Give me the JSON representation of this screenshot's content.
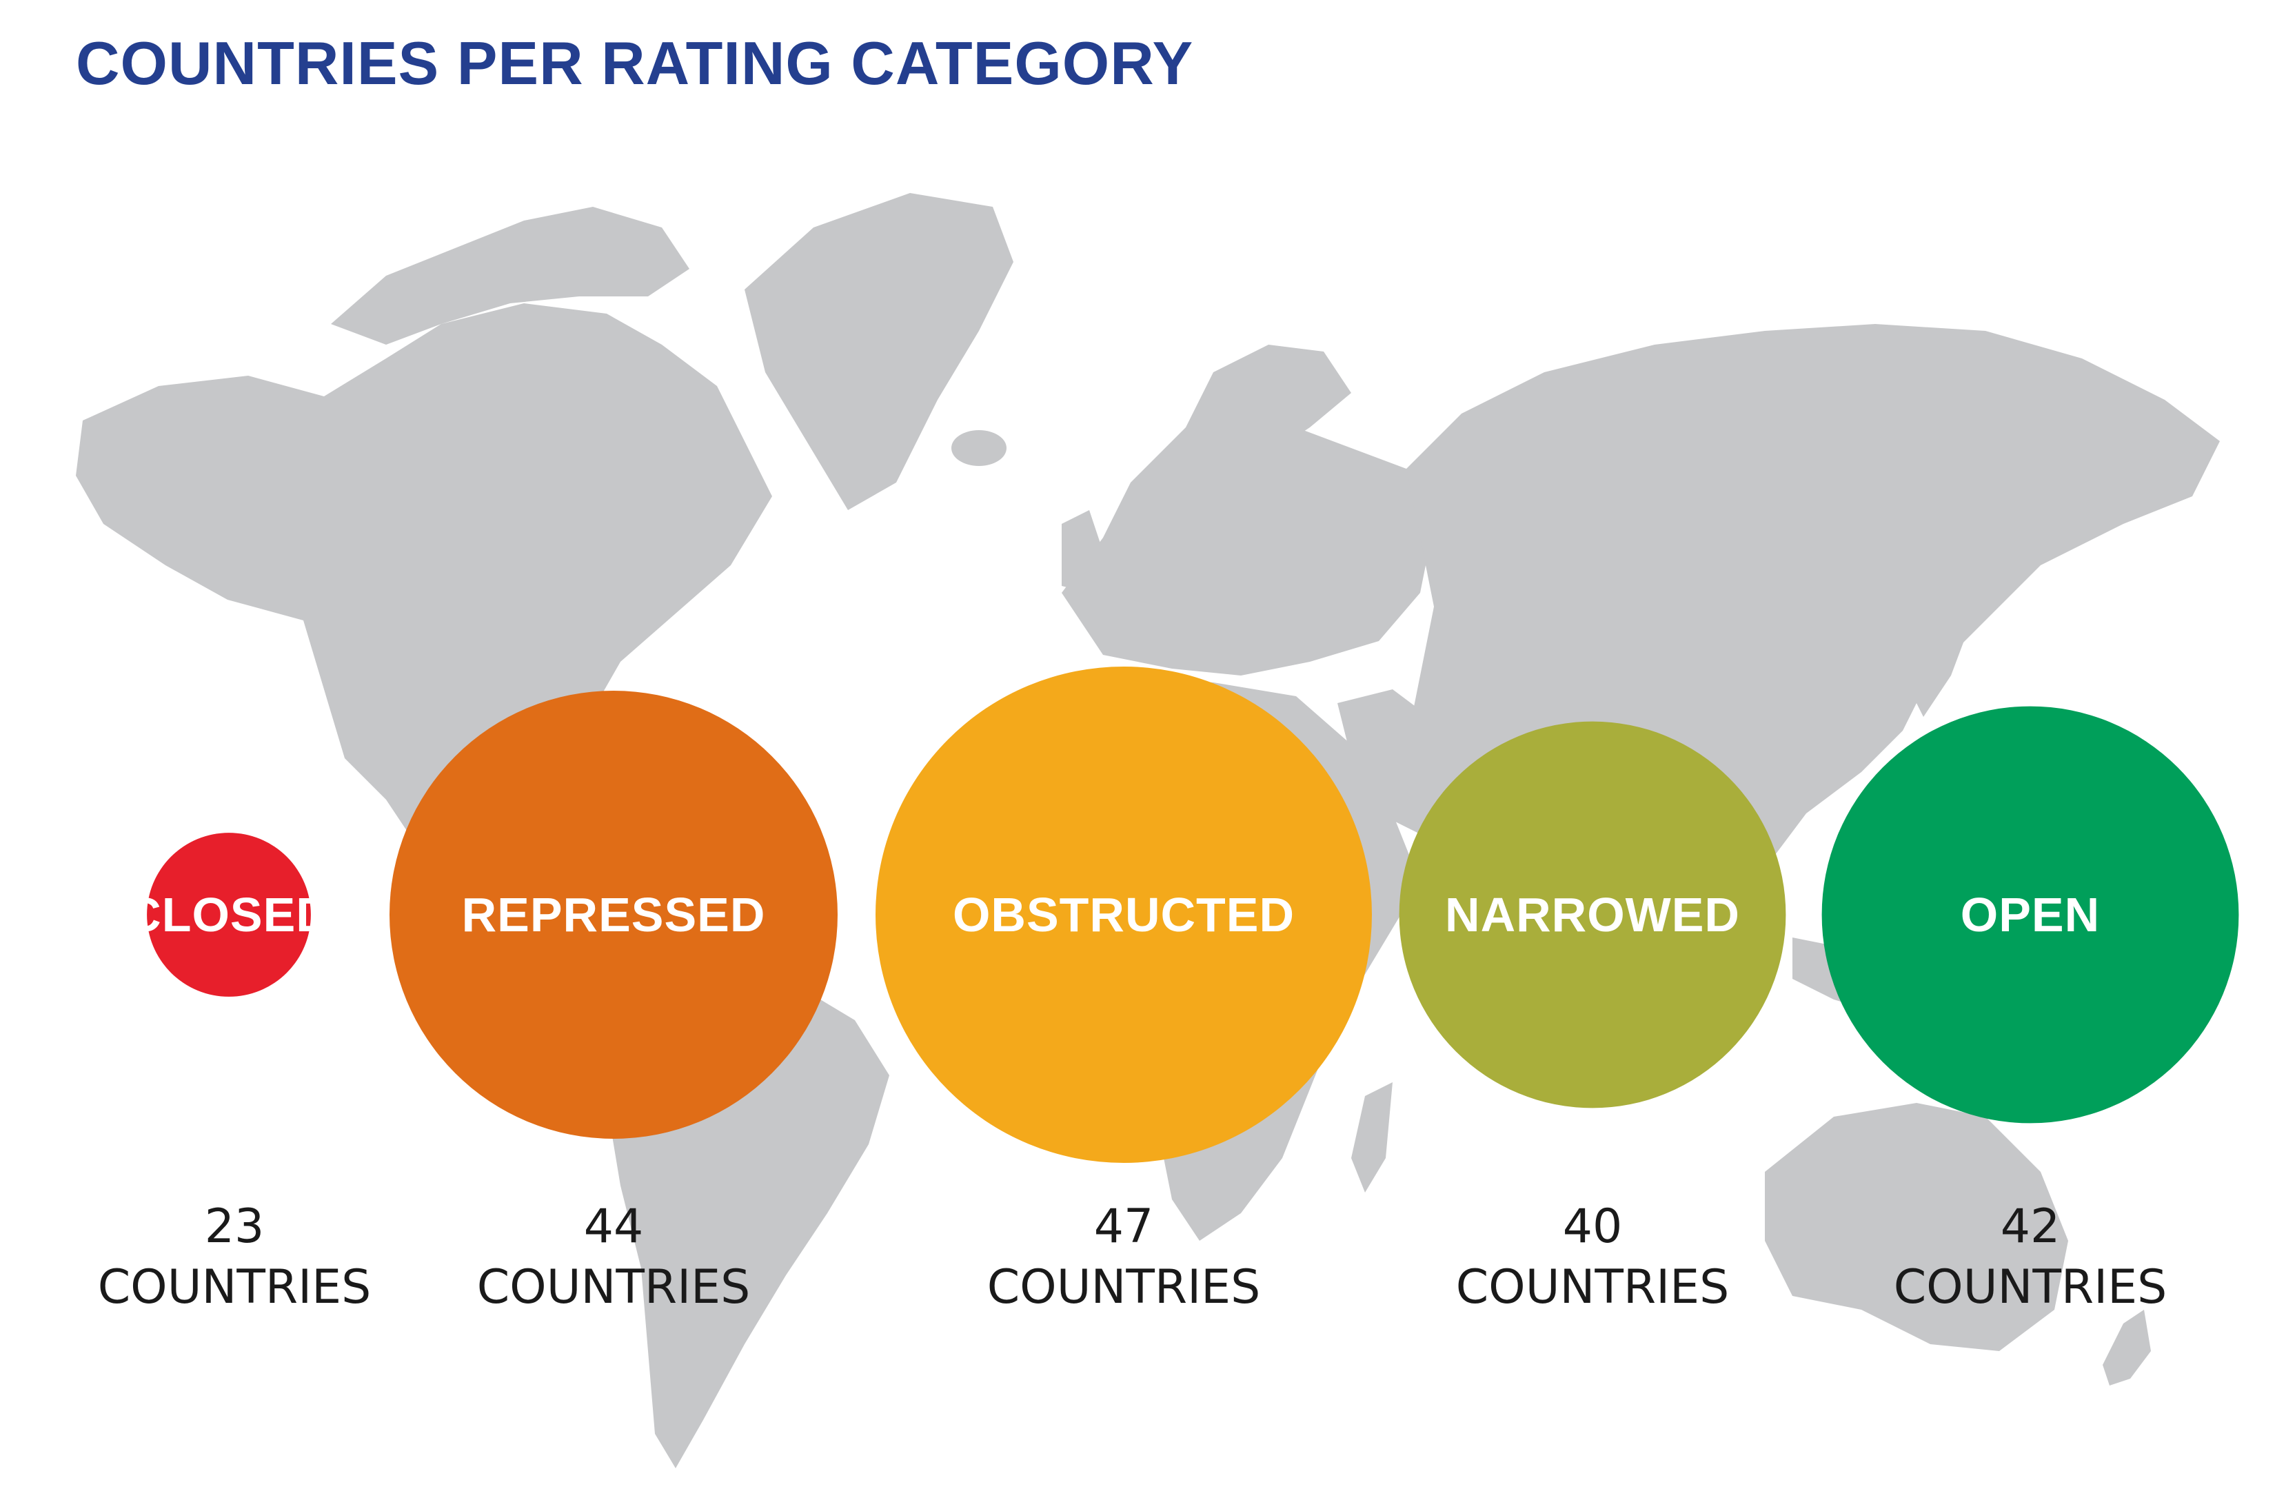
{
  "title": "COUNTRIES PER RATING CATEGORY",
  "colors": {
    "title": "#243f8f",
    "map": "#c6c7c9",
    "closed": "#e71f2b",
    "repressed": "#e06d17",
    "obstructed": "#f4a91b",
    "narrowed": "#a9ae3b",
    "open": "#009f5a"
  },
  "chart_data": {
    "type": "bubble",
    "title": "COUNTRIES PER RATING CATEGORY",
    "unit": "COUNTRIES",
    "categories": [
      "CLOSED",
      "REPRESSED",
      "OBSTRUCTED",
      "NARROWED",
      "OPEN"
    ],
    "values": [
      23,
      44,
      47,
      40,
      42
    ],
    "colors": [
      "#e71f2b",
      "#e06d17",
      "#f4a91b",
      "#a9ae3b",
      "#009f5a"
    ],
    "background": "world-map"
  }
}
